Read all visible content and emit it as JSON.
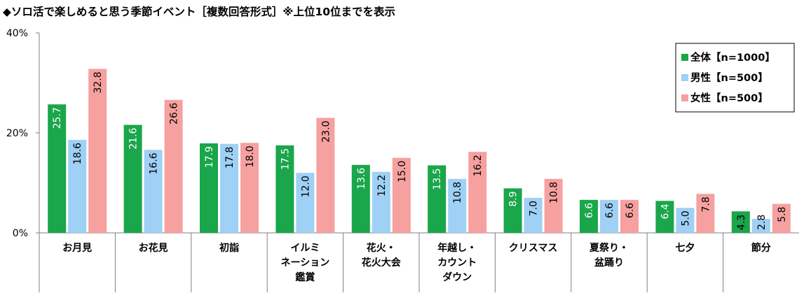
{
  "chart_data": {
    "type": "bar",
    "title": "◆ソロ活で楽しめると思う季節イベント［複数回答形式］※上位10位までを表示",
    "categories": [
      [
        "お月見"
      ],
      [
        "お花見"
      ],
      [
        "初詣"
      ],
      [
        "イルミ",
        "ネーション",
        "鑑賞"
      ],
      [
        "花火・",
        "花火大会"
      ],
      [
        "年越し・",
        "カウント",
        "ダウン"
      ],
      [
        "クリスマス"
      ],
      [
        "夏祭り・",
        "盆踊り"
      ],
      [
        "七夕"
      ],
      [
        "節分"
      ]
    ],
    "series": [
      {
        "name": "全体【n=1000】",
        "color": "#1aa64a",
        "label_color": "#ffffff",
        "values": [
          25.7,
          21.6,
          17.9,
          17.5,
          13.6,
          13.5,
          8.9,
          6.6,
          6.4,
          4.3
        ]
      },
      {
        "name": "男性【n=500】",
        "color": "#9fd0f5",
        "label_color": "#000000",
        "values": [
          18.6,
          16.6,
          17.8,
          12.0,
          12.2,
          10.8,
          7.0,
          6.6,
          5.0,
          2.8
        ]
      },
      {
        "name": "女性【n=500】",
        "color": "#f6a0a0",
        "label_color": "#000000",
        "values": [
          32.8,
          26.6,
          18.0,
          23.0,
          15.0,
          16.2,
          10.8,
          6.6,
          7.8,
          5.8
        ]
      }
    ],
    "ylim": [
      0,
      40
    ],
    "yticks": [
      "0%",
      "20%",
      "40%"
    ],
    "ytick_values": [
      0,
      20,
      40
    ],
    "legend_position": "top-right",
    "grid": false
  }
}
